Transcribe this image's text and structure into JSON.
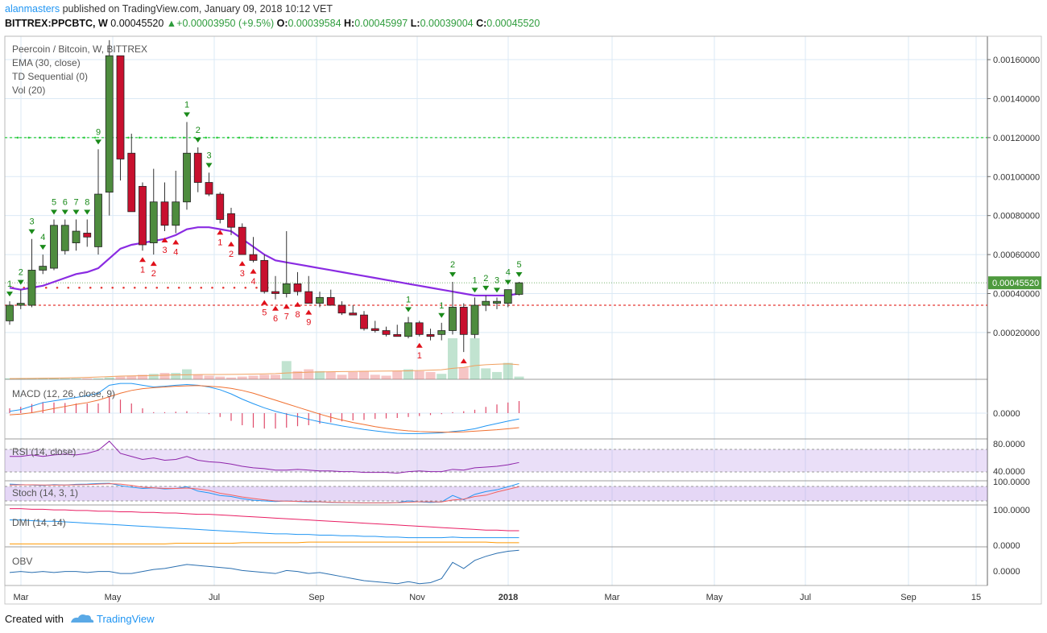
{
  "header": {
    "user": "alanmasters",
    "published": " published on TradingView.com, January 09, 2018 10:12 VET",
    "symbol": "BITTREX:PPCBTC, W",
    "price": "0.00045520",
    "change_arrow": "▲",
    "change": "+0.00003950 (+9.5%)",
    "ohlc": [
      {
        "k": "O:",
        "v": "0.00039584"
      },
      {
        "k": "H:",
        "v": "0.00045997"
      },
      {
        "k": "L:",
        "v": "0.00039004"
      },
      {
        "k": "C:",
        "v": "0.00045520"
      }
    ]
  },
  "legend": [
    "Peercoin / Bitcoin, W, BITTREX",
    "EMA (30, close)",
    "TD Sequential (0)",
    "Vol (20)"
  ],
  "footer": {
    "created": "Created with",
    "brand": "TradingView"
  },
  "colors": {
    "up": "#4e8c3e",
    "down": "#c8102e",
    "ema": "#8a2be2",
    "grid": "#dbe9f5",
    "td_green": "#1a8a1a",
    "td_red": "#e0101a",
    "green_line": "#2ecc40",
    "red_line": "#e53935",
    "last_price_bg": "#4e9a3e"
  },
  "chart_data": {
    "type": "candlestick",
    "title": "Peercoin / Bitcoin, W, BITTREX",
    "x_ticks": [
      "Mar",
      "May",
      "Jul",
      "Sep",
      "Nov",
      "2018",
      "Mar",
      "May",
      "Jul",
      "Sep",
      "15"
    ],
    "y_ticks": [
      "0.00160000",
      "0.00140000",
      "0.00120000",
      "0.00100000",
      "0.00080000",
      "0.00060000",
      "0.00040000",
      "0.00020000"
    ],
    "y_tick_values": [
      0.0016,
      0.0014,
      0.0012,
      0.001,
      0.0008,
      0.0006,
      0.0004,
      0.0002
    ],
    "ylim": [
      -4e-05,
      0.00172
    ],
    "last_price_label": "0.00045520",
    "last_price": 0.0004552,
    "resistance": 0.0012,
    "support": 0.00043,
    "support2": 0.00034,
    "candles": [
      {
        "o": 0.00026,
        "h": 0.00036,
        "l": 0.00024,
        "c": 0.00034
      },
      {
        "o": 0.00034,
        "h": 0.00042,
        "l": 0.00032,
        "c": 0.00035
      },
      {
        "o": 0.00034,
        "h": 0.00068,
        "l": 0.00033,
        "c": 0.00052
      },
      {
        "o": 0.00052,
        "h": 0.0006,
        "l": 0.0005,
        "c": 0.00054
      },
      {
        "o": 0.00053,
        "h": 0.00078,
        "l": 0.00052,
        "c": 0.00075
      },
      {
        "o": 0.00062,
        "h": 0.00078,
        "l": 0.0006,
        "c": 0.00075
      },
      {
        "o": 0.00066,
        "h": 0.00078,
        "l": 0.00062,
        "c": 0.00072
      },
      {
        "o": 0.00071,
        "h": 0.00078,
        "l": 0.00064,
        "c": 0.00069
      },
      {
        "o": 0.00064,
        "h": 0.00114,
        "l": 0.0006,
        "c": 0.00091
      },
      {
        "o": 0.00092,
        "h": 0.0017,
        "l": 0.0008,
        "c": 0.00162
      },
      {
        "o": 0.00162,
        "h": 0.00162,
        "l": 0.00098,
        "c": 0.00109
      },
      {
        "o": 0.00112,
        "h": 0.00122,
        "l": 0.00082,
        "c": 0.00082
      },
      {
        "o": 0.00095,
        "h": 0.00097,
        "l": 0.00062,
        "c": 0.00065
      },
      {
        "o": 0.00066,
        "h": 0.00104,
        "l": 0.0006,
        "c": 0.00087
      },
      {
        "o": 0.00087,
        "h": 0.00097,
        "l": 0.00072,
        "c": 0.00075
      },
      {
        "o": 0.00075,
        "h": 0.00103,
        "l": 0.00071,
        "c": 0.00087
      },
      {
        "o": 0.00087,
        "h": 0.00128,
        "l": 0.00083,
        "c": 0.00112
      },
      {
        "o": 0.00112,
        "h": 0.00115,
        "l": 0.00092,
        "c": 0.00097
      },
      {
        "o": 0.00097,
        "h": 0.00102,
        "l": 0.0009,
        "c": 0.00091
      },
      {
        "o": 0.00091,
        "h": 0.00092,
        "l": 0.00076,
        "c": 0.00078
      },
      {
        "o": 0.00081,
        "h": 0.00084,
        "l": 0.0007,
        "c": 0.00074
      },
      {
        "o": 0.00074,
        "h": 0.00076,
        "l": 0.0006,
        "c": 0.0006
      },
      {
        "o": 0.0006,
        "h": 0.00069,
        "l": 0.00056,
        "c": 0.00057
      },
      {
        "o": 0.00057,
        "h": 0.0006,
        "l": 0.0004,
        "c": 0.00041
      },
      {
        "o": 0.00041,
        "h": 0.00049,
        "l": 0.00037,
        "c": 0.0004
      },
      {
        "o": 0.0004,
        "h": 0.00072,
        "l": 0.00038,
        "c": 0.00045
      },
      {
        "o": 0.00045,
        "h": 0.00051,
        "l": 0.00039,
        "c": 0.00041
      },
      {
        "o": 0.00041,
        "h": 0.00049,
        "l": 0.00035,
        "c": 0.00035
      },
      {
        "o": 0.00035,
        "h": 0.00041,
        "l": 0.00033,
        "c": 0.00038
      },
      {
        "o": 0.00038,
        "h": 0.00042,
        "l": 0.00034,
        "c": 0.00034
      },
      {
        "o": 0.00034,
        "h": 0.00036,
        "l": 0.00029,
        "c": 0.0003
      },
      {
        "o": 0.0003,
        "h": 0.00034,
        "l": 0.00029,
        "c": 0.00029
      },
      {
        "o": 0.00029,
        "h": 0.00031,
        "l": 0.00021,
        "c": 0.00022
      },
      {
        "o": 0.00022,
        "h": 0.00026,
        "l": 0.0002,
        "c": 0.00021
      },
      {
        "o": 0.00021,
        "h": 0.00023,
        "l": 0.00018,
        "c": 0.00019
      },
      {
        "o": 0.00019,
        "h": 0.00024,
        "l": 0.00018,
        "c": 0.00018
      },
      {
        "o": 0.00018,
        "h": 0.00028,
        "l": 0.00017,
        "c": 0.00025
      },
      {
        "o": 0.00025,
        "h": 0.00026,
        "l": 0.00018,
        "c": 0.00019
      },
      {
        "o": 0.00019,
        "h": 0.00022,
        "l": 0.00016,
        "c": 0.00018
      },
      {
        "o": 0.00019,
        "h": 0.00025,
        "l": 0.00016,
        "c": 0.00021
      },
      {
        "o": 0.00021,
        "h": 0.00046,
        "l": 0.00019,
        "c": 0.00033
      },
      {
        "o": 0.00033,
        "h": 0.00035,
        "l": 0.0001,
        "c": 0.00019
      },
      {
        "o": 0.00019,
        "h": 0.00038,
        "l": 0.00017,
        "c": 0.00034
      },
      {
        "o": 0.00034,
        "h": 0.00039,
        "l": 0.00031,
        "c": 0.00036
      },
      {
        "o": 0.00035,
        "h": 0.00038,
        "l": 0.00032,
        "c": 0.00036
      },
      {
        "o": 0.00035,
        "h": 0.00042,
        "l": 0.00033,
        "c": 0.00042
      },
      {
        "o": 0.00039584,
        "h": 0.00045997,
        "l": 0.00039004,
        "c": 0.0004552
      }
    ],
    "ema": [
      0.00043,
      0.00042,
      0.00043,
      0.00044,
      0.00046,
      0.00048,
      0.0005,
      0.00051,
      0.00053,
      0.00058,
      0.00063,
      0.00065,
      0.00066,
      0.00067,
      0.00068,
      0.0007,
      0.00073,
      0.00074,
      0.00074,
      0.00073,
      0.00072,
      0.00068,
      0.00064,
      0.0006,
      0.00057,
      0.00056,
      0.00055,
      0.00054,
      0.00053,
      0.00052,
      0.00051,
      0.0005,
      0.00049,
      0.00048,
      0.00047,
      0.00046,
      0.00045,
      0.00044,
      0.00043,
      0.00042,
      0.00041,
      0.0004,
      0.00039,
      0.00039,
      0.00039,
      0.00039,
      0.0004
    ],
    "td_above": [
      {
        "i": 0,
        "n": "1"
      },
      {
        "i": 1,
        "n": "2"
      },
      {
        "i": 2,
        "n": "3"
      },
      {
        "i": 3,
        "n": "4"
      },
      {
        "i": 4,
        "n": "5"
      },
      {
        "i": 5,
        "n": "6"
      },
      {
        "i": 6,
        "n": "7"
      },
      {
        "i": 7,
        "n": "8"
      },
      {
        "i": 8,
        "n": "9"
      },
      {
        "i": 16,
        "n": "1"
      },
      {
        "i": 17,
        "n": "2"
      },
      {
        "i": 18,
        "n": "3"
      },
      {
        "i": 36,
        "n": "1"
      },
      {
        "i": 39,
        "n": "1"
      },
      {
        "i": 40,
        "n": "2"
      },
      {
        "i": 42,
        "n": "1"
      },
      {
        "i": 43,
        "n": "2"
      },
      {
        "i": 44,
        "n": "3"
      },
      {
        "i": 45,
        "n": "4"
      },
      {
        "i": 46,
        "n": "5"
      }
    ],
    "td_below": [
      {
        "i": 12,
        "n": "1"
      },
      {
        "i": 13,
        "n": "2"
      },
      {
        "i": 14,
        "n": "3"
      },
      {
        "i": 15,
        "n": "4"
      },
      {
        "i": 19,
        "n": "1"
      },
      {
        "i": 20,
        "n": "2"
      },
      {
        "i": 21,
        "n": "3"
      },
      {
        "i": 22,
        "n": "4"
      },
      {
        "i": 23,
        "n": "5"
      },
      {
        "i": 24,
        "n": "6"
      },
      {
        "i": 25,
        "n": "7"
      },
      {
        "i": 26,
        "n": "8"
      },
      {
        "i": 27,
        "n": "9"
      },
      {
        "i": 37,
        "n": "1"
      },
      {
        "i": 41,
        "n": ""
      }
    ],
    "volume": [
      1,
      1,
      1,
      1,
      1,
      1,
      1,
      1,
      1,
      2,
      3,
      4,
      5,
      6,
      7,
      7,
      11,
      5,
      4,
      3,
      2,
      3,
      4,
      5,
      5,
      20,
      9,
      11,
      9,
      8,
      5,
      8,
      9,
      5,
      4,
      9,
      11,
      9,
      8,
      6,
      45,
      13,
      45,
      12,
      8,
      18,
      3
    ],
    "volume_ma": [
      0.8,
      0.9,
      1,
      1.2,
      1.3,
      1.5,
      1.8,
      2.1,
      2.5,
      3,
      3.5,
      3.8,
      4,
      4.2,
      4.5,
      4.8,
      5,
      5.2,
      5.3,
      5.3,
      5.4,
      5.5,
      5.7,
      6,
      6.3,
      7,
      7.4,
      7.8,
      8,
      8.3,
      8.5,
      8.6,
      8.8,
      8.9,
      9,
      9.1,
      9.3,
      9.6,
      10,
      10.5,
      12,
      13,
      15,
      16,
      16.5,
      17,
      16
    ],
    "indicators": {
      "macd": {
        "label": "MACD (12, 26, close, 9)",
        "tick": "0.0000"
      },
      "rsi": {
        "label": "RSI (14, close)",
        "ticks": [
          "80.0000",
          "40.0000"
        ]
      },
      "stoch": {
        "label": "Stoch (14, 3, 1)",
        "tick": "100.0000"
      },
      "dmi": {
        "label": "DMI (14, 14)",
        "ticks": [
          "100.0000",
          "0.0000"
        ]
      },
      "obv": {
        "label": "OBV",
        "tick": "0.0000"
      }
    },
    "macd_line": [
      0.2,
      0.25,
      0.35,
      0.45,
      0.5,
      0.55,
      0.6,
      0.65,
      0.72,
      0.95,
      1.0,
      1.0,
      0.95,
      0.9,
      0.92,
      0.95,
      0.97,
      0.95,
      0.9,
      0.82,
      0.7,
      0.55,
      0.42,
      0.3,
      0.2,
      0.12,
      0.05,
      -0.03,
      -0.1,
      -0.16,
      -0.22,
      -0.27,
      -0.32,
      -0.36,
      -0.4,
      -0.43,
      -0.44,
      -0.44,
      -0.43,
      -0.42,
      -0.38,
      -0.35,
      -0.3,
      -0.22,
      -0.15,
      -0.08,
      -0.02
    ],
    "signal_line": [
      0.1,
      0.12,
      0.16,
      0.22,
      0.28,
      0.34,
      0.4,
      0.45,
      0.52,
      0.62,
      0.72,
      0.8,
      0.85,
      0.88,
      0.9,
      0.92,
      0.93,
      0.94,
      0.92,
      0.9,
      0.86,
      0.8,
      0.72,
      0.62,
      0.52,
      0.42,
      0.32,
      0.22,
      0.12,
      0.03,
      -0.05,
      -0.12,
      -0.18,
      -0.24,
      -0.29,
      -0.33,
      -0.36,
      -0.38,
      -0.39,
      -0.4,
      -0.4,
      -0.39,
      -0.37,
      -0.35,
      -0.33,
      -0.3,
      -0.27
    ],
    "rsi_line": [
      62,
      62,
      64,
      62,
      64,
      65,
      64,
      66,
      70,
      82,
      66,
      62,
      58,
      60,
      57,
      58,
      62,
      57,
      55,
      54,
      52,
      49,
      47,
      46,
      44,
      44,
      45,
      44,
      43,
      43,
      42,
      42,
      41,
      41,
      41,
      40,
      42,
      43,
      42,
      42,
      45,
      44,
      47,
      48,
      49,
      51,
      54
    ],
    "stoch_k": [
      92,
      90,
      88,
      86,
      90,
      88,
      91,
      92,
      95,
      96,
      85,
      78,
      72,
      75,
      70,
      72,
      80,
      60,
      52,
      40,
      35,
      25,
      18,
      15,
      12,
      15,
      12,
      10,
      10,
      8,
      7,
      7,
      6,
      6,
      6,
      8,
      15,
      10,
      8,
      10,
      40,
      20,
      45,
      58,
      66,
      80,
      95
    ],
    "stoch_d": [
      88,
      89,
      89,
      88,
      88,
      88,
      89,
      90,
      92,
      94,
      92,
      86,
      78,
      75,
      72,
      72,
      74,
      70,
      63,
      50,
      42,
      33,
      26,
      20,
      15,
      14,
      13,
      12,
      11,
      9,
      8,
      7,
      6,
      6,
      6,
      7,
      9,
      11,
      11,
      10,
      19,
      23,
      35,
      41,
      56,
      68,
      80
    ],
    "dmi_plus": [
      40,
      40,
      39,
      38,
      38,
      37,
      36,
      35,
      34,
      33,
      32,
      31,
      30,
      29,
      28,
      27,
      26,
      25,
      24,
      23,
      22,
      21,
      20,
      19,
      18,
      18,
      17,
      17,
      16,
      16,
      15,
      15,
      14,
      14,
      13,
      13,
      12,
      12,
      12,
      12,
      13,
      12,
      12,
      12,
      12,
      12,
      12
    ],
    "dmi_minus": [
      58,
      58,
      57,
      57,
      56,
      56,
      55,
      55,
      54,
      54,
      53,
      53,
      52,
      52,
      51,
      51,
      50,
      49,
      49,
      48,
      47,
      46,
      45,
      44,
      43,
      42,
      41,
      40,
      39,
      38,
      37,
      36,
      35,
      34,
      33,
      32,
      31,
      30,
      29,
      28,
      27,
      26,
      25,
      24,
      24,
      23,
      23
    ],
    "adx": [
      2,
      2,
      2,
      2,
      2,
      2,
      2,
      2,
      2,
      2,
      2,
      2,
      2,
      2,
      2,
      3,
      3,
      3,
      3,
      3,
      3,
      4,
      4,
      4,
      4,
      4,
      4,
      5,
      5,
      5,
      5,
      5,
      5,
      5,
      5,
      5,
      5,
      5,
      5,
      5,
      5,
      5,
      5,
      5,
      4,
      4,
      4
    ],
    "obv": [
      0,
      0.05,
      0.0,
      0.05,
      0.0,
      0.05,
      0.05,
      0.0,
      0.05,
      0.05,
      -0.05,
      -0.05,
      0.05,
      0.15,
      0.2,
      0.3,
      0.4,
      0.35,
      0.3,
      0.25,
      0.2,
      0.1,
      0.05,
      0.0,
      -0.05,
      0.1,
      0.05,
      -0.05,
      0.0,
      -0.1,
      -0.2,
      -0.3,
      -0.4,
      -0.45,
      -0.5,
      -0.55,
      -0.45,
      -0.55,
      -0.5,
      -0.3,
      0.5,
      0.2,
      0.6,
      0.8,
      0.95,
      1.05,
      1.1
    ]
  }
}
